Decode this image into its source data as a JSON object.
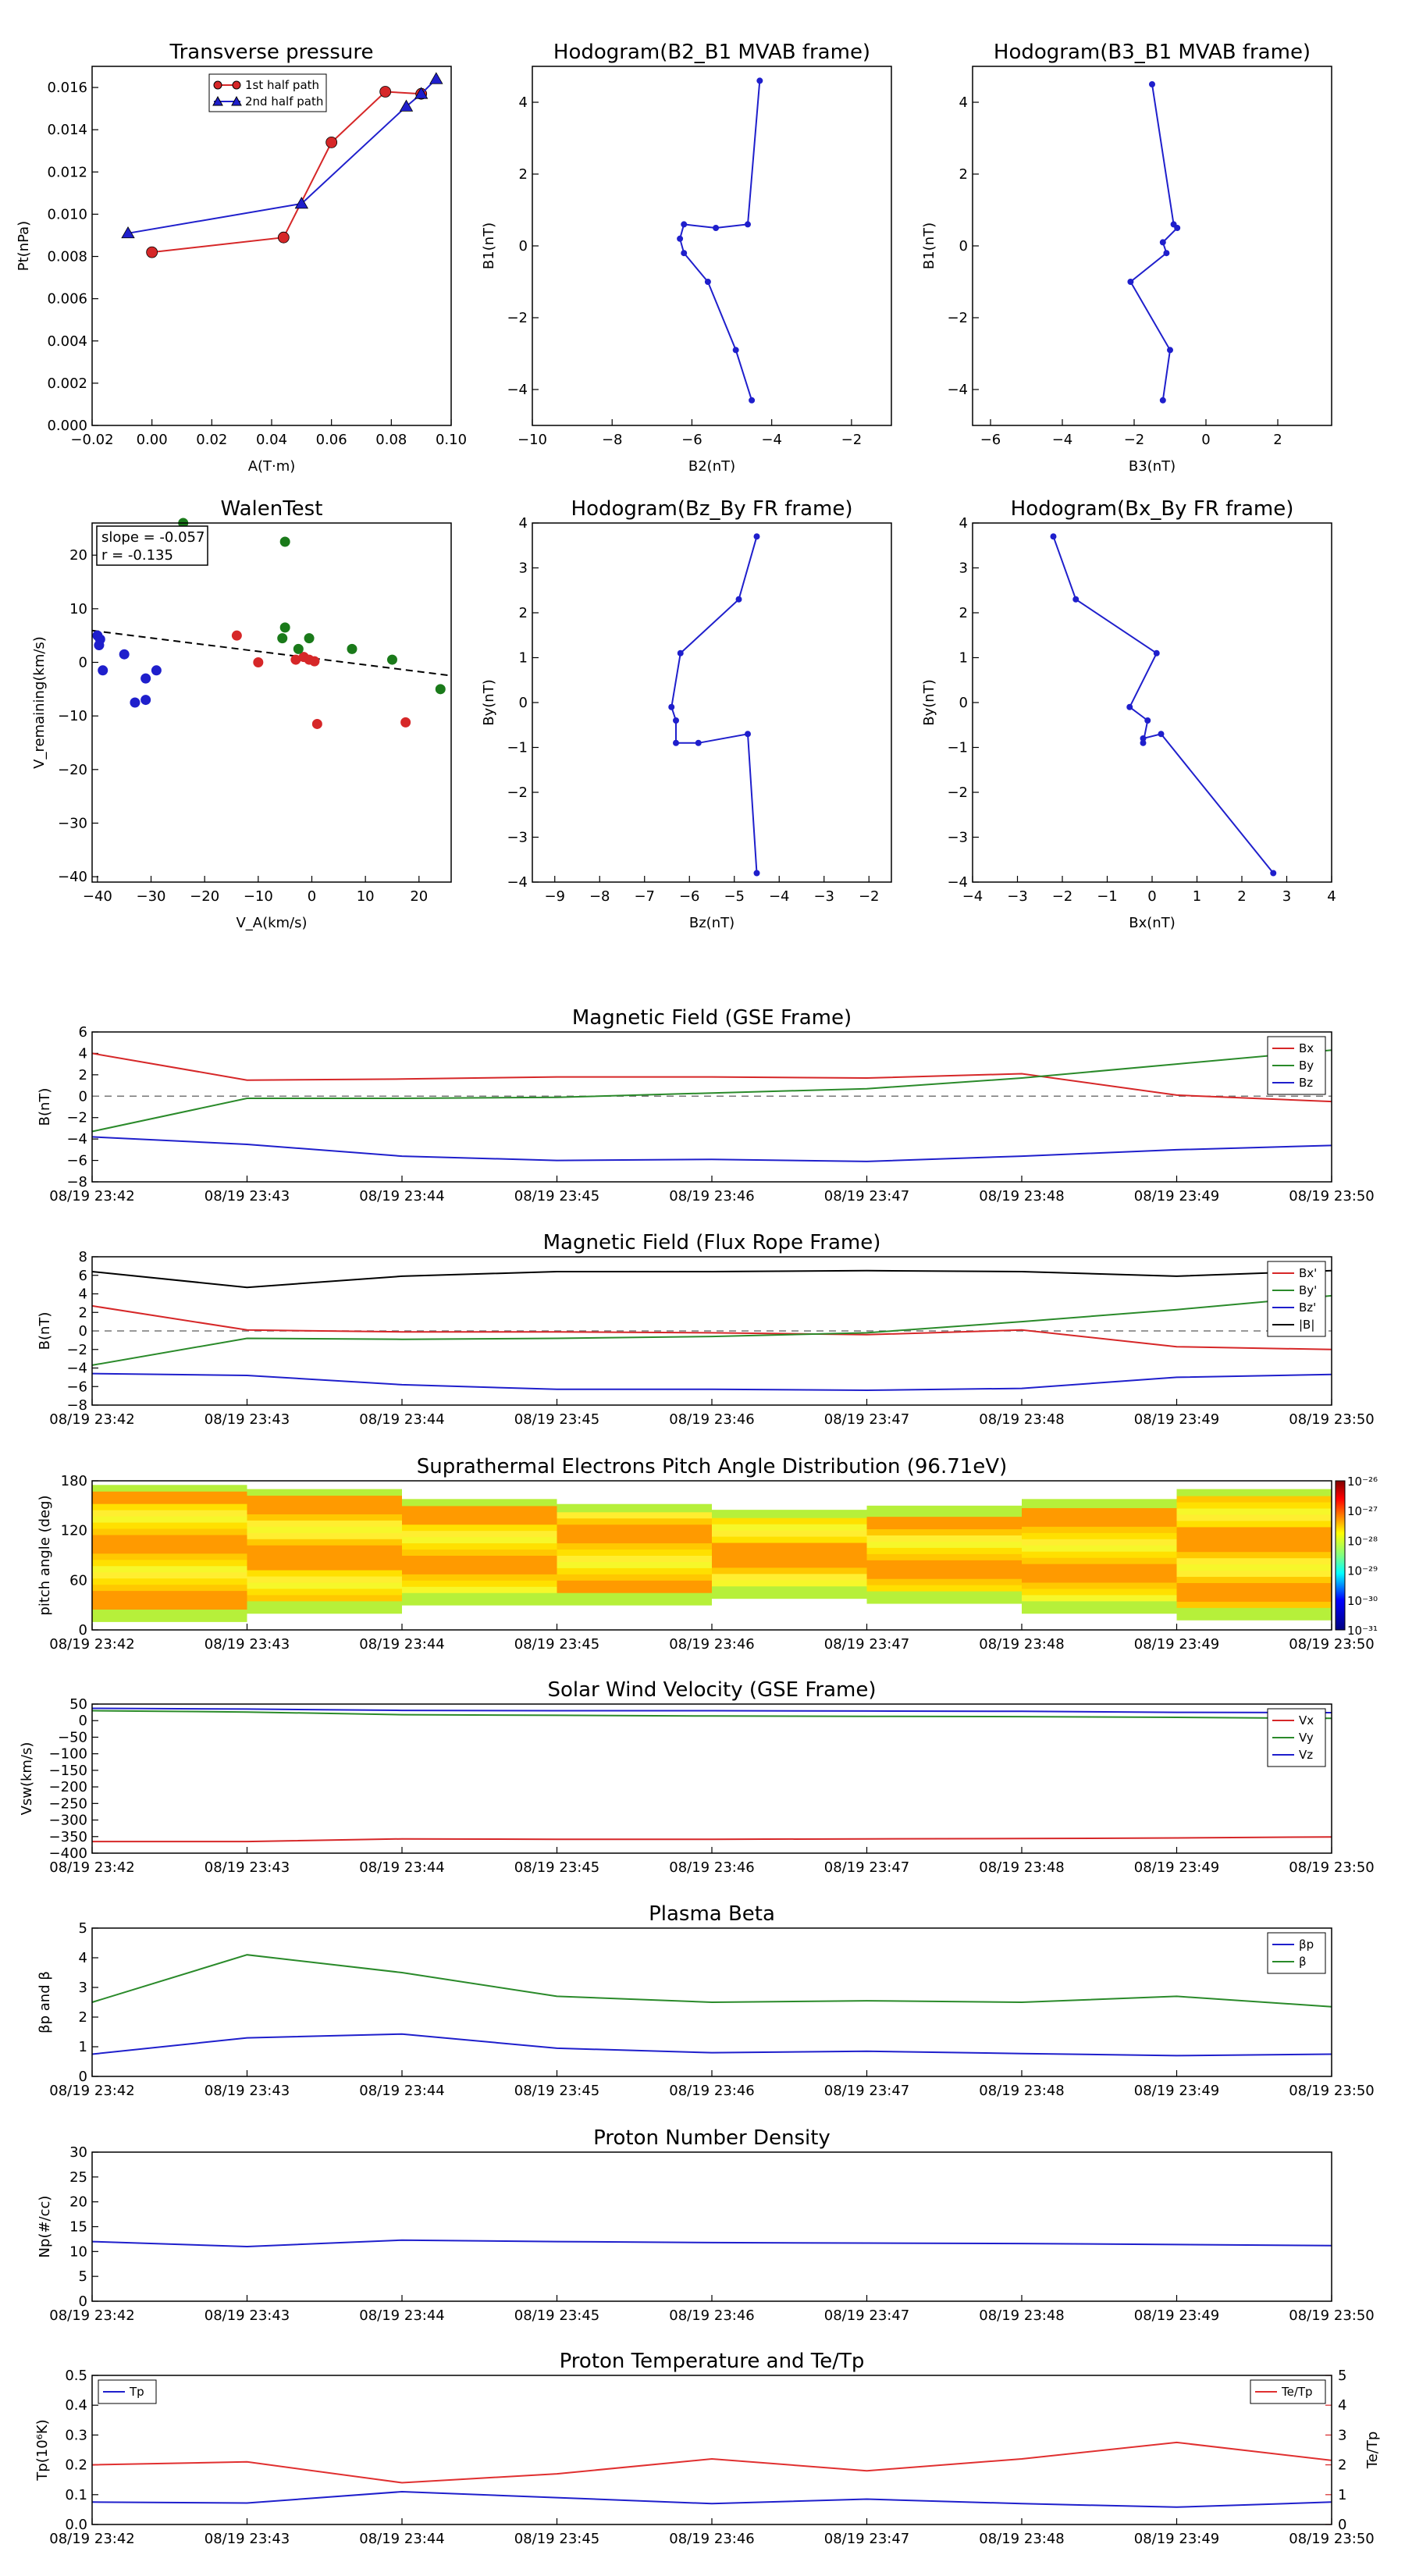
{
  "time_ticks": [
    "08/19 23:42",
    "08/19 23:43",
    "08/19 23:44",
    "08/19 23:45",
    "08/19 23:46",
    "08/19 23:47",
    "08/19 23:48",
    "08/19 23:49",
    "08/19 23:50"
  ],
  "chart_data": [
    {
      "id": "transverse",
      "type": "line",
      "title": "Transverse pressure",
      "xlabel": "A(T·m)",
      "ylabel": "Pt(nPa)",
      "xlim": [
        -0.02,
        0.1
      ],
      "ylim": [
        0.0,
        0.017
      ],
      "xticks": [
        -0.02,
        0.0,
        0.02,
        0.04,
        0.06,
        0.08,
        0.1
      ],
      "xtick_labels": [
        "−0.02",
        "0.00",
        "0.02",
        "0.04",
        "0.06",
        "0.08",
        "0.10"
      ],
      "yticks": [
        0.0,
        0.002,
        0.004,
        0.006,
        0.008,
        0.01,
        0.012,
        0.014,
        0.016
      ],
      "ytick_labels": [
        "0.000",
        "0.002",
        "0.004",
        "0.006",
        "0.008",
        "0.010",
        "0.012",
        "0.014",
        "0.016"
      ],
      "legend": "top-center",
      "series": [
        {
          "name": "1st half path",
          "color": "#d62728",
          "marker": "circle",
          "x": [
            0.0,
            0.044,
            0.06,
            0.078,
            0.09
          ],
          "y": [
            0.0082,
            0.0089,
            0.0134,
            0.0158,
            0.0157
          ]
        },
        {
          "name": "2nd half path",
          "color": "#1f1fcc",
          "marker": "triangle",
          "x": [
            -0.008,
            0.05,
            0.085,
            0.09,
            0.095
          ],
          "y": [
            0.0091,
            0.0105,
            0.0151,
            0.0157,
            0.0164
          ]
        }
      ]
    },
    {
      "id": "hodo1",
      "type": "line",
      "title": "Hodogram(B2_B1 MVAB frame)",
      "xlabel": "B2(nT)",
      "ylabel": "B1(nT)",
      "xlim": [
        -10,
        -1
      ],
      "ylim": [
        -5,
        5
      ],
      "xticks": [
        -10,
        -8,
        -6,
        -4,
        -2
      ],
      "xtick_labels": [
        "−10",
        "−8",
        "−6",
        "−4",
        "−2"
      ],
      "yticks": [
        -4,
        -2,
        0,
        2,
        4
      ],
      "ytick_labels": [
        "−4",
        "−2",
        "0",
        "2",
        "4"
      ],
      "series": [
        {
          "color": "#1f1fcc",
          "x": [
            -4.3,
            -4.6,
            -5.4,
            -6.2,
            -6.3,
            -6.2,
            -5.6,
            -4.9,
            -4.5
          ],
          "y": [
            4.6,
            0.6,
            0.5,
            0.6,
            0.2,
            -0.2,
            -1.0,
            -2.9,
            -4.3
          ]
        }
      ]
    },
    {
      "id": "hodo2",
      "type": "line",
      "title": "Hodogram(B3_B1 MVAB frame)",
      "xlabel": "B3(nT)",
      "ylabel": "B1(nT)",
      "xlim": [
        -6.5,
        3.5
      ],
      "ylim": [
        -5,
        5
      ],
      "xticks": [
        -6,
        -4,
        -2,
        0,
        2
      ],
      "xtick_labels": [
        "−6",
        "−4",
        "−2",
        "0",
        "2"
      ],
      "yticks": [
        -4,
        -2,
        0,
        2,
        4
      ],
      "ytick_labels": [
        "−4",
        "−2",
        "0",
        "2",
        "4"
      ],
      "series": [
        {
          "color": "#1f1fcc",
          "x": [
            -1.5,
            -0.9,
            -0.8,
            -1.2,
            -1.1,
            -2.1,
            -1.0,
            -1.2
          ],
          "y": [
            4.5,
            0.6,
            0.5,
            0.1,
            -0.2,
            -1.0,
            -2.9,
            -4.3
          ]
        }
      ]
    },
    {
      "id": "walen",
      "type": "scatter",
      "title": "WalenTest",
      "xlabel": "V_A(km/s)",
      "ylabel": "V_remaining(km/s)",
      "xlim": [
        -41,
        26
      ],
      "ylim": [
        -41,
        26
      ],
      "xticks": [
        -40,
        -30,
        -20,
        -10,
        0,
        10,
        20
      ],
      "xtick_labels": [
        "−40",
        "−30",
        "−20",
        "−10",
        "0",
        "10",
        "20"
      ],
      "yticks": [
        -40,
        -30,
        -20,
        -10,
        0,
        10,
        20
      ],
      "ytick_labels": [
        "−40",
        "−30",
        "−20",
        "−10",
        "0",
        "10",
        "20"
      ],
      "annotation": [
        "slope = -0.057",
        "r = -0.135"
      ],
      "fit_line": {
        "slope": -0.057,
        "intercept": 0.6
      },
      "series": [
        {
          "color": "#1f1fcc",
          "x": [
            -40,
            -39.5,
            -39.7,
            -39,
            -35,
            -33,
            -31,
            -31,
            -29
          ],
          "y": [
            5,
            4.3,
            3.2,
            -1.5,
            1.5,
            -7.5,
            -3,
            -7,
            -1.5
          ]
        },
        {
          "color": "#d62728",
          "x": [
            -14,
            -10,
            -3,
            -1.5,
            -0.5,
            0.5,
            1,
            17.5
          ],
          "y": [
            5,
            0,
            0.5,
            1,
            0.5,
            0.2,
            -11.5,
            -11.2
          ]
        },
        {
          "color": "#1a7a1a",
          "x": [
            -24,
            -5,
            -5,
            -5.5,
            -2.5,
            -0.5,
            7.5,
            15,
            24
          ],
          "y": [
            26,
            22.5,
            6.5,
            4.5,
            2.5,
            4.5,
            2.5,
            0.5,
            -5
          ]
        }
      ]
    },
    {
      "id": "hodo3",
      "type": "line",
      "title": "Hodogram(Bz_By FR frame)",
      "xlabel": "Bz(nT)",
      "ylabel": "By(nT)",
      "xlim": [
        -9.5,
        -1.5
      ],
      "ylim": [
        -4,
        4
      ],
      "xticks": [
        -9,
        -8,
        -7,
        -6,
        -5,
        -4,
        -3,
        -2
      ],
      "xtick_labels": [
        "−9",
        "−8",
        "−7",
        "−6",
        "−5",
        "−4",
        "−3",
        "−2"
      ],
      "yticks": [
        -4,
        -3,
        -2,
        -1,
        0,
        1,
        2,
        3,
        4
      ],
      "ytick_labels": [
        "−4",
        "−3",
        "−2",
        "−1",
        "0",
        "1",
        "2",
        "3",
        "4"
      ],
      "series": [
        {
          "color": "#1f1fcc",
          "x": [
            -4.5,
            -4.9,
            -6.2,
            -6.4,
            -6.3,
            -6.3,
            -5.8,
            -4.7,
            -4.5
          ],
          "y": [
            3.7,
            2.3,
            1.1,
            -0.1,
            -0.4,
            -0.9,
            -0.9,
            -0.7,
            -3.8
          ]
        }
      ]
    },
    {
      "id": "hodo4",
      "type": "line",
      "title": "Hodogram(Bx_By FR frame)",
      "xlabel": "Bx(nT)",
      "ylabel": "By(nT)",
      "xlim": [
        -4,
        4
      ],
      "ylim": [
        -4,
        4
      ],
      "xticks": [
        -4,
        -3,
        -2,
        -1,
        0,
        1,
        2,
        3,
        4
      ],
      "xtick_labels": [
        "−4",
        "−3",
        "−2",
        "−1",
        "0",
        "1",
        "2",
        "3",
        "4"
      ],
      "yticks": [
        -4,
        -3,
        -2,
        -1,
        0,
        1,
        2,
        3,
        4
      ],
      "ytick_labels": [
        "−4",
        "−3",
        "−2",
        "−1",
        "0",
        "1",
        "2",
        "3",
        "4"
      ],
      "series": [
        {
          "color": "#1f1fcc",
          "x": [
            -2.2,
            -1.7,
            0.1,
            -0.5,
            -0.1,
            -0.2,
            -0.2,
            0.2,
            2.7
          ],
          "y": [
            3.7,
            2.3,
            1.1,
            -0.1,
            -0.4,
            -0.9,
            -0.8,
            -0.7,
            -3.8
          ]
        }
      ]
    },
    {
      "id": "mag_gse",
      "type": "line",
      "title": "Magnetic Field (GSE Frame)",
      "ylabel": "B(nT)",
      "ylim": [
        -8,
        6
      ],
      "yticks": [
        -8,
        -6,
        -4,
        -2,
        0,
        2,
        4,
        6
      ],
      "ytick_labels": [
        "−8",
        "−6",
        "−4",
        "−2",
        "0",
        "2",
        "4",
        "6"
      ],
      "x": [
        0,
        1,
        2,
        3,
        4,
        5,
        6,
        7,
        8
      ],
      "zero_line": true,
      "legend": "top-right",
      "series": [
        {
          "name": "Bx",
          "color": "#d62728",
          "values": [
            4.0,
            1.5,
            1.6,
            1.8,
            1.8,
            1.7,
            2.1,
            0.1,
            -0.5
          ]
        },
        {
          "name": "By",
          "color": "#2a8a2a",
          "values": [
            -3.3,
            -0.2,
            -0.2,
            -0.1,
            0.3,
            0.7,
            1.7,
            3.0,
            4.3
          ]
        },
        {
          "name": "Bz",
          "color": "#1f1fcc",
          "values": [
            -3.8,
            -4.5,
            -5.6,
            -6.0,
            -5.9,
            -6.1,
            -5.6,
            -5.0,
            -4.6
          ]
        }
      ]
    },
    {
      "id": "mag_fr",
      "type": "line",
      "title": "Magnetic Field (Flux Rope Frame)",
      "ylabel": "B(nT)",
      "ylim": [
        -8,
        8
      ],
      "yticks": [
        -8,
        -6,
        -4,
        -2,
        0,
        2,
        4,
        6,
        8
      ],
      "ytick_labels": [
        "−8",
        "−6",
        "−4",
        "−2",
        "0",
        "2",
        "4",
        "6",
        "8"
      ],
      "x": [
        0,
        1,
        2,
        3,
        4,
        5,
        6,
        7,
        8
      ],
      "zero_line": true,
      "legend": "top-right",
      "series": [
        {
          "name": "Bx'",
          "color": "#d62728",
          "values": [
            2.7,
            0.1,
            -0.1,
            -0.1,
            -0.2,
            -0.4,
            0.1,
            -1.7,
            -2.0
          ]
        },
        {
          "name": "By'",
          "color": "#2a8a2a",
          "values": [
            -3.7,
            -0.8,
            -0.9,
            -0.8,
            -0.6,
            -0.2,
            1.0,
            2.3,
            3.8
          ]
        },
        {
          "name": "Bz'",
          "color": "#1f1fcc",
          "values": [
            -4.6,
            -4.8,
            -5.8,
            -6.3,
            -6.3,
            -6.4,
            -6.2,
            -5.0,
            -4.7
          ]
        },
        {
          "name": "|B|",
          "color": "#000000",
          "values": [
            6.4,
            4.7,
            5.9,
            6.4,
            6.4,
            6.5,
            6.4,
            5.9,
            6.5
          ]
        }
      ]
    },
    {
      "id": "pad",
      "type": "heatmap",
      "title": "Suprathermal Electrons Pitch Angle Distribution (96.71eV)",
      "ylabel": "pitch angle (deg)",
      "ylim": [
        0,
        180
      ],
      "yticks": [
        0,
        60,
        120,
        180
      ],
      "ytick_labels": [
        "0",
        "60",
        "120",
        "180"
      ],
      "colorbar_labels": [
        "10⁻²⁶",
        "10⁻²⁷",
        "10⁻²⁸",
        "10⁻²⁹",
        "10⁻³⁰",
        "10⁻³¹"
      ],
      "columns": [
        {
          "t0": 0,
          "t1": 1,
          "ymin": 10,
          "ymax": 175,
          "level": 0.72
        },
        {
          "t0": 1,
          "t1": 2,
          "ymin": 20,
          "ymax": 170,
          "level": 0.62
        },
        {
          "t0": 2,
          "t1": 3,
          "ymin": 30,
          "ymax": 158,
          "level": 0.58
        },
        {
          "t0": 3,
          "t1": 4,
          "ymin": 30,
          "ymax": 152,
          "level": 0.6
        },
        {
          "t0": 4,
          "t1": 5,
          "ymin": 38,
          "ymax": 145,
          "level": 0.62
        },
        {
          "t0": 5,
          "t1": 6,
          "ymin": 32,
          "ymax": 150,
          "level": 0.6
        },
        {
          "t0": 6,
          "t1": 7,
          "ymin": 20,
          "ymax": 158,
          "level": 0.62
        },
        {
          "t0": 7,
          "t1": 8,
          "ymin": 12,
          "ymax": 170,
          "level": 0.75
        }
      ]
    },
    {
      "id": "vsw",
      "type": "line",
      "title": "Solar Wind Velocity (GSE Frame)",
      "ylabel": "Vsw(km/s)",
      "ylim": [
        -400,
        50
      ],
      "yticks": [
        -400,
        -350,
        -300,
        -250,
        -200,
        -150,
        -100,
        -50,
        0,
        50
      ],
      "ytick_labels": [
        "−400",
        "−350",
        "−300",
        "−250",
        "−200",
        "−150",
        "−100",
        "−50",
        "0",
        "50"
      ],
      "x": [
        0,
        1,
        2,
        3,
        4,
        5,
        6,
        7,
        8
      ],
      "legend": "top-right",
      "series": [
        {
          "name": "Vx",
          "color": "#d62728",
          "values": [
            -365,
            -365,
            -357,
            -358,
            -358,
            -357,
            -356,
            -354,
            -351
          ]
        },
        {
          "name": "Vy",
          "color": "#2a8a2a",
          "values": [
            30,
            26,
            18,
            16,
            14,
            13,
            12,
            10,
            7
          ]
        },
        {
          "name": "Vz",
          "color": "#1f1fcc",
          "values": [
            37,
            35,
            31,
            30,
            30,
            29,
            28,
            25,
            24
          ]
        }
      ]
    },
    {
      "id": "beta",
      "type": "line",
      "title": "Plasma Beta",
      "ylabel": "βp and β",
      "ylim": [
        0,
        5
      ],
      "yticks": [
        0,
        1,
        2,
        3,
        4,
        5
      ],
      "ytick_labels": [
        "0",
        "1",
        "2",
        "3",
        "4",
        "5"
      ],
      "x": [
        0,
        1,
        2,
        3,
        4,
        5,
        6,
        7,
        8
      ],
      "legend": "top-right",
      "series": [
        {
          "name": "βp",
          "color": "#1f1fcc",
          "values": [
            0.75,
            1.3,
            1.43,
            0.95,
            0.8,
            0.85,
            0.77,
            0.7,
            0.75
          ]
        },
        {
          "name": "β",
          "color": "#2a8a2a",
          "values": [
            2.5,
            4.1,
            3.5,
            2.7,
            2.5,
            2.55,
            2.5,
            2.7,
            2.35
          ]
        }
      ]
    },
    {
      "id": "np",
      "type": "line",
      "title": "Proton Number Density",
      "ylabel": "Np(#/cc)",
      "ylim": [
        0,
        30
      ],
      "yticks": [
        0,
        5,
        10,
        15,
        20,
        25,
        30
      ],
      "ytick_labels": [
        "0",
        "5",
        "10",
        "15",
        "20",
        "25",
        "30"
      ],
      "x": [
        0,
        1,
        2,
        3,
        4,
        5,
        6,
        7,
        8
      ],
      "series": [
        {
          "color": "#1f1fcc",
          "values": [
            12.0,
            11.0,
            12.3,
            12.0,
            11.8,
            11.7,
            11.6,
            11.4,
            11.2
          ]
        }
      ]
    },
    {
      "id": "temp",
      "type": "line",
      "title": "Proton Temperature and Te/Tp",
      "ylabel": "Tp(10⁶K)",
      "ylabel_right": "Te/Tp",
      "ylim": [
        0,
        0.5
      ],
      "yticks": [
        0,
        0.1,
        0.2,
        0.3,
        0.4,
        0.5
      ],
      "ytick_labels": [
        "0.0",
        "0.1",
        "0.2",
        "0.3",
        "0.4",
        "0.5"
      ],
      "ylim_right": [
        0,
        5
      ],
      "yticks_right": [
        0,
        1,
        2,
        3,
        4,
        5
      ],
      "ytick_labels_right": [
        "0",
        "1",
        "2",
        "3",
        "4",
        "5"
      ],
      "x": [
        0,
        1,
        2,
        3,
        4,
        5,
        6,
        7,
        8
      ],
      "legend": "top-left / top-right",
      "series": [
        {
          "name": "Tp",
          "color": "#1f1fcc",
          "axis": "left",
          "values": [
            0.075,
            0.072,
            0.11,
            0.09,
            0.07,
            0.085,
            0.07,
            0.058,
            0.075
          ]
        },
        {
          "name": "Te/Tp",
          "color": "#e03030",
          "axis": "right",
          "values": [
            2.0,
            2.1,
            1.4,
            1.7,
            2.2,
            1.8,
            2.2,
            2.75,
            2.15
          ]
        }
      ]
    }
  ]
}
